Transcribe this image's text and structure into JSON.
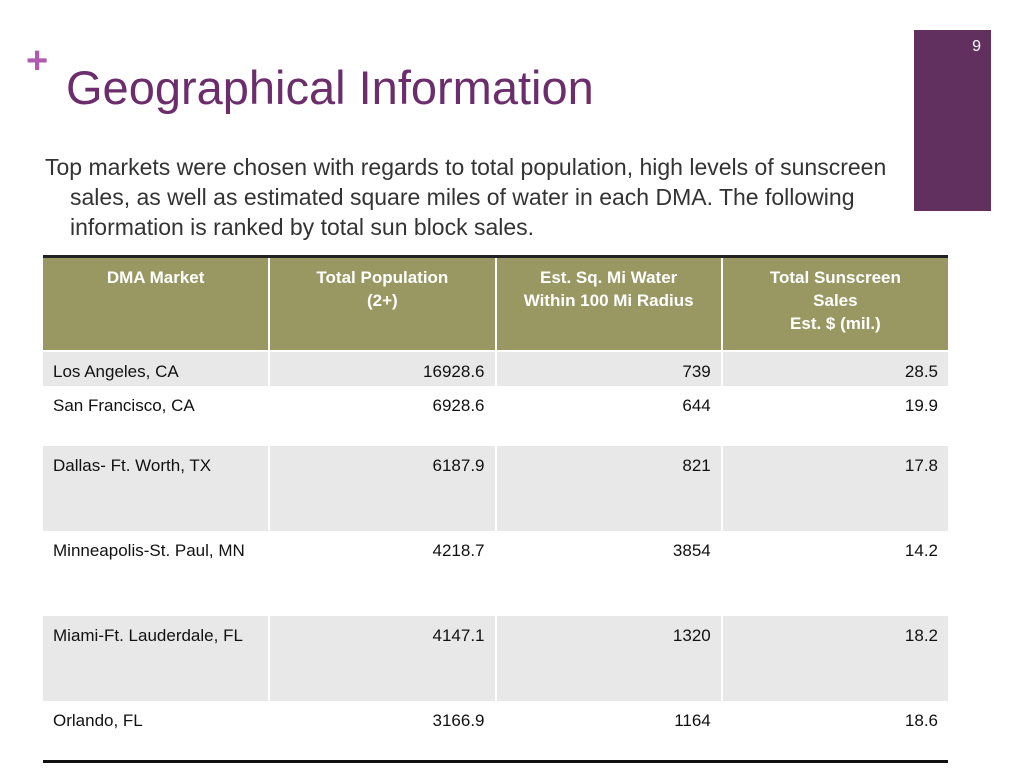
{
  "slide": {
    "number": "9",
    "mark": "+",
    "title": "Geographical Information",
    "body": "Top markets were chosen with regards to total population, high levels of sunscreen sales, as well as estimated square miles of water in each DMA.  The following information is ranked by total sun block sales."
  },
  "table": {
    "header": [
      "DMA Market",
      "Total Population\n(2+)",
      "Est. Sq. Mi Water\nWithin 100 Mi Radius",
      "Total Sunscreen\nSales\nEst. $ (mil.)"
    ],
    "rows": [
      [
        "Los Angeles, CA",
        16928.6,
        739,
        28.5
      ],
      [
        "San Francisco, CA",
        6928.6,
        644,
        19.9
      ],
      [
        "Dallas- Ft. Worth, TX",
        6187.9,
        821,
        17.8
      ],
      [
        "Minneapolis-St. Paul, MN",
        4218.7,
        3854,
        14.2
      ],
      [
        "Miami-Ft. Lauderdale, FL",
        4147.1,
        1320,
        18.2
      ],
      [
        "Orlando, FL",
        3166.9,
        1164,
        18.6
      ]
    ]
  }
}
